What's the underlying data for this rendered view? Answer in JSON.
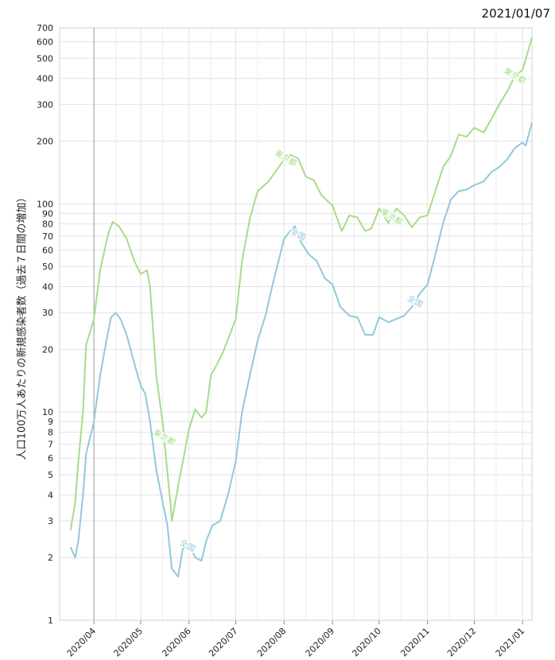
{
  "header": {
    "date": "2021/01/07"
  },
  "chart_data": {
    "type": "line",
    "title": "",
    "ylabel": "人口100万人あたりの新規感染者数（過去７日間の増加）",
    "xlabel": "",
    "yscale": "log",
    "ylim": [
      1,
      700
    ],
    "xlim": [
      "2020-03-10",
      "2021-01-07"
    ],
    "grid": true,
    "yticks": [
      1,
      2,
      3,
      4,
      5,
      6,
      7,
      8,
      9,
      10,
      20,
      30,
      40,
      50,
      60,
      70,
      80,
      90,
      100,
      200,
      300,
      400,
      500,
      600,
      700
    ],
    "xticks": [
      {
        "date": "2020-04-01",
        "label": "2020/04"
      },
      {
        "date": "2020-05-01",
        "label": "2020/05"
      },
      {
        "date": "2020-06-01",
        "label": "2020/06"
      },
      {
        "date": "2020-07-01",
        "label": "2020/07"
      },
      {
        "date": "2020-08-01",
        "label": "2020/08"
      },
      {
        "date": "2020-09-01",
        "label": "2020/09"
      },
      {
        "date": "2020-10-01",
        "label": "2020/10"
      },
      {
        "date": "2020-11-01",
        "label": "2020/11"
      },
      {
        "date": "2020-12-01",
        "label": "2020/12"
      },
      {
        "date": "2021-01-01",
        "label": "2021/01"
      }
    ],
    "marker_date": "2020-04-01",
    "series": [
      {
        "name": "東京都",
        "color": "#a6dc8a",
        "label_dates": [
          "2020-05-16",
          "2020-08-02",
          "2020-10-09",
          "2020-12-27"
        ],
        "x": [
          "2020-03-17",
          "2020-03-20",
          "2020-03-22",
          "2020-03-25",
          "2020-03-27",
          "2020-04-01",
          "2020-04-05",
          "2020-04-10",
          "2020-04-13",
          "2020-04-17",
          "2020-04-22",
          "2020-04-27",
          "2020-05-01",
          "2020-05-05",
          "2020-05-07",
          "2020-05-11",
          "2020-05-15",
          "2020-05-20",
          "2020-05-21",
          "2020-05-25",
          "2020-05-29",
          "2020-06-01",
          "2020-06-05",
          "2020-06-09",
          "2020-06-12",
          "2020-06-15",
          "2020-06-19",
          "2020-06-23",
          "2020-07-01",
          "2020-07-05",
          "2020-07-10",
          "2020-07-15",
          "2020-07-22",
          "2020-08-01",
          "2020-08-05",
          "2020-08-10",
          "2020-08-15",
          "2020-08-20",
          "2020-08-25",
          "2020-09-01",
          "2020-09-07",
          "2020-09-12",
          "2020-09-17",
          "2020-09-22",
          "2020-09-26",
          "2020-10-01",
          "2020-10-07",
          "2020-10-12",
          "2020-10-17",
          "2020-10-22",
          "2020-10-27",
          "2020-11-01",
          "2020-11-06",
          "2020-11-11",
          "2020-11-16",
          "2020-11-21",
          "2020-11-26",
          "2020-12-01",
          "2020-12-07",
          "2020-12-12",
          "2020-12-17",
          "2020-12-22",
          "2020-12-27",
          "2021-01-01",
          "2021-01-03",
          "2021-01-07"
        ],
        "y": [
          2.7,
          3.7,
          5.8,
          10,
          21,
          28,
          48,
          71,
          82,
          78,
          68,
          53,
          46,
          48,
          40,
          15,
          9,
          3.7,
          3,
          4.4,
          6.3,
          8.3,
          10.3,
          9.4,
          10,
          15,
          17,
          19.5,
          28,
          53,
          85,
          115,
          128,
          163,
          172,
          165,
          135,
          130,
          110,
          98,
          74,
          88,
          86,
          74,
          76,
          95,
          81,
          95,
          88,
          77,
          86,
          88,
          115,
          150,
          170,
          215,
          210,
          232,
          220,
          255,
          300,
          345,
          410,
          440,
          495,
          630
        ]
      },
      {
        "name": "全国",
        "color": "#92c8dc",
        "label_dates": [
          "2020-05-31",
          "2020-08-10",
          "2020-10-24"
        ],
        "x": [
          "2020-03-17",
          "2020-03-20",
          "2020-03-22",
          "2020-03-25",
          "2020-03-27",
          "2020-04-01",
          "2020-04-05",
          "2020-04-09",
          "2020-04-12",
          "2020-04-15",
          "2020-04-18",
          "2020-04-22",
          "2020-04-27",
          "2020-05-01",
          "2020-05-04",
          "2020-05-07",
          "2020-05-11",
          "2020-05-15",
          "2020-05-18",
          "2020-05-21",
          "2020-05-25",
          "2020-05-28",
          "2020-06-01",
          "2020-06-05",
          "2020-06-09",
          "2020-06-12",
          "2020-06-16",
          "2020-06-21",
          "2020-06-26",
          "2020-07-01",
          "2020-07-05",
          "2020-07-10",
          "2020-07-15",
          "2020-07-20",
          "2020-07-25",
          "2020-08-01",
          "2020-08-05",
          "2020-08-08",
          "2020-08-12",
          "2020-08-17",
          "2020-08-22",
          "2020-08-27",
          "2020-09-01",
          "2020-09-06",
          "2020-09-12",
          "2020-09-17",
          "2020-09-22",
          "2020-09-27",
          "2020-10-01",
          "2020-10-07",
          "2020-10-12",
          "2020-10-17",
          "2020-10-22",
          "2020-10-27",
          "2020-11-01",
          "2020-11-06",
          "2020-11-11",
          "2020-11-16",
          "2020-11-21",
          "2020-11-26",
          "2020-12-01",
          "2020-12-07",
          "2020-12-12",
          "2020-12-17",
          "2020-12-22",
          "2020-12-27",
          "2021-01-01",
          "2021-01-03",
          "2021-01-07"
        ],
        "y": [
          2.25,
          2.0,
          2.4,
          4.0,
          6.3,
          9,
          15,
          22,
          28.5,
          30,
          28,
          23.5,
          17,
          13.4,
          12.2,
          9,
          5.3,
          3.7,
          2.9,
          1.77,
          1.62,
          2.2,
          2.3,
          2.0,
          1.93,
          2.4,
          2.85,
          3.0,
          4.0,
          5.8,
          10,
          15,
          22,
          29,
          42,
          68,
          74,
          78,
          65,
          57,
          53,
          44,
          41,
          32,
          29,
          28.5,
          23.5,
          23.5,
          28.5,
          27,
          28,
          29,
          32,
          37,
          41,
          57,
          81,
          105,
          115,
          117,
          123,
          128,
          142,
          150,
          163,
          185,
          197,
          190,
          245
        ]
      }
    ]
  }
}
